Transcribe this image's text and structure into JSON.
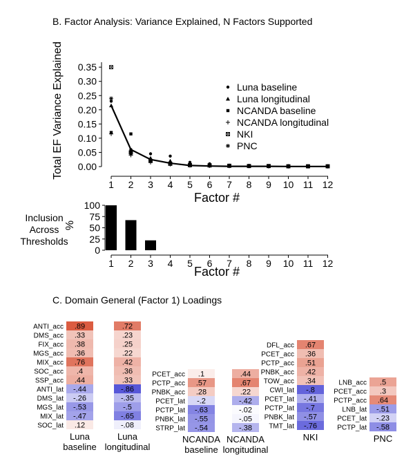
{
  "panel_b_title": "B. Factor Analysis: Variance Explained, N Factors Supported",
  "panel_c_title": "C. Domain General (Factor 1) Loadings",
  "chart_data": [
    {
      "type": "scatter",
      "ylabel": "Total EF Variance Explained",
      "xlabel": "Factor #",
      "x": [
        1,
        2,
        3,
        4,
        5,
        6,
        7,
        8,
        9,
        10,
        11,
        12
      ],
      "y_ticks": [
        "0.00",
        "0.05",
        "0.10",
        "0.15",
        "0.20",
        "0.25",
        "0.30",
        "0.35"
      ],
      "ylim": [
        0,
        0.36
      ],
      "legend_position": "right",
      "series": [
        {
          "name": "Luna baseline",
          "marker": "circle",
          "values": [
            0.23,
            0.06,
            0.045,
            0.037,
            0.015,
            0.01,
            0.004,
            0.003,
            0.003,
            0.002,
            0.001,
            0.001
          ]
        },
        {
          "name": "Luna longitudinal",
          "marker": "triangle",
          "values": [
            0.215,
            0.055,
            0.03,
            0.02,
            0.008,
            0.006,
            0.004,
            0.003,
            0.002,
            0.002,
            0.001,
            0.001
          ]
        },
        {
          "name": "NCANDA baseline",
          "marker": "square",
          "values": [
            0.12,
            0.115,
            0.02,
            0.012,
            0.006,
            0.004,
            0.003,
            0.002,
            0.002,
            0.001,
            0.001,
            0.001
          ]
        },
        {
          "name": "NCANDA longitudinal",
          "marker": "plus",
          "values": [
            0.115,
            0.04,
            0.015,
            0.008,
            0.004,
            0.003,
            0.002,
            0.002,
            0.001,
            0.001,
            0.001,
            0.001
          ]
        },
        {
          "name": "NKI",
          "marker": "boxx",
          "values": [
            0.35,
            0.05,
            0.02,
            0.01,
            0.005,
            0.004,
            0.003,
            0.002,
            0.002,
            0.001,
            0.001,
            0.001
          ]
        },
        {
          "name": "PNC",
          "marker": "star",
          "values": [
            0.24,
            0.045,
            0.022,
            0.01,
            0.005,
            0.003,
            0.002,
            0.002,
            0.001,
            0.001,
            0.001,
            0.001
          ]
        }
      ],
      "mean_line": [
        0.215,
        0.06,
        0.025,
        0.012,
        0.004,
        0.002,
        0.001,
        0.001,
        0.001,
        0.0005,
        0.0005,
        0.0005
      ]
    },
    {
      "type": "bar",
      "ylabel_left": [
        "Inclusion",
        "Across",
        "Thresholds"
      ],
      "ylabel_unit": "%",
      "xlabel": "Factor #",
      "categories": [
        "1",
        "2",
        "3",
        "4",
        "5",
        "6",
        "7",
        "8",
        "9",
        "10",
        "11",
        "12"
      ],
      "values": [
        100,
        67,
        22,
        0,
        0,
        0,
        0,
        0,
        0,
        0,
        0,
        0
      ],
      "y_ticks": [
        "0",
        "25",
        "50",
        "75",
        "100"
      ],
      "ylim": [
        0,
        100
      ]
    },
    {
      "type": "heatmap",
      "columns": [
        {
          "label": [
            "Luna",
            "baseline"
          ],
          "rows": [
            {
              "name": "ANTI_acc",
              "value": 0.89,
              "text": ".89"
            },
            {
              "name": "DMS_acc",
              "value": 0.33,
              "text": ".33"
            },
            {
              "name": "FIX_acc",
              "value": 0.38,
              "text": ".38"
            },
            {
              "name": "MGS_acc",
              "value": 0.36,
              "text": ".36"
            },
            {
              "name": "MIX_acc",
              "value": 0.76,
              "text": ".76"
            },
            {
              "name": "SOC_acc",
              "value": 0.4,
              "text": ".4"
            },
            {
              "name": "SSP_acc",
              "value": 0.44,
              "text": ".44"
            },
            {
              "name": "ANTI_lat",
              "value": -0.44,
              "text": "-.44"
            },
            {
              "name": "DMS_lat",
              "value": -0.26,
              "text": "-.26"
            },
            {
              "name": "MGS_lat",
              "value": -0.53,
              "text": "-.53"
            },
            {
              "name": "MIX_lat",
              "value": -0.47,
              "text": "-.47"
            },
            {
              "name": "SOC_lat",
              "value": 0.12,
              "text": ".12"
            }
          ]
        },
        {
          "label": [
            "Luna",
            "longitudinal"
          ],
          "rows": [
            {
              "name": "",
              "value": 0.72,
              "text": ".72"
            },
            {
              "name": "",
              "value": 0.23,
              "text": ".23"
            },
            {
              "name": "",
              "value": 0.25,
              "text": ".25"
            },
            {
              "name": "",
              "value": 0.22,
              "text": ".22"
            },
            {
              "name": "",
              "value": 0.42,
              "text": ".42"
            },
            {
              "name": "",
              "value": 0.36,
              "text": ".36"
            },
            {
              "name": "",
              "value": 0.33,
              "text": ".33"
            },
            {
              "name": "",
              "value": -0.86,
              "text": "-.86"
            },
            {
              "name": "",
              "value": -0.35,
              "text": "-.35"
            },
            {
              "name": "",
              "value": -0.5,
              "text": "-.5"
            },
            {
              "name": "",
              "value": -0.65,
              "text": "-.65"
            },
            {
              "name": "",
              "value": -0.08,
              "text": "-.08"
            }
          ]
        },
        {
          "label": [
            "NCANDA",
            "baseline"
          ],
          "rows": [
            {
              "name": "PCET_acc",
              "value": 0.1,
              "text": ".1"
            },
            {
              "name": "PCTP_acc",
              "value": 0.57,
              "text": ".57"
            },
            {
              "name": "PNBK_acc",
              "value": 0.28,
              "text": ".28"
            },
            {
              "name": "PCET_lat",
              "value": -0.2,
              "text": "-.2"
            },
            {
              "name": "PCTP_lat",
              "value": -0.63,
              "text": "-.63"
            },
            {
              "name": "PNBK_lat",
              "value": -0.55,
              "text": "-.55"
            },
            {
              "name": "STRP_lat",
              "value": -0.54,
              "text": "-.54"
            }
          ]
        },
        {
          "label": [
            "NCANDA",
            "longitudinal"
          ],
          "rows": [
            {
              "name": "",
              "value": 0.44,
              "text": ".44"
            },
            {
              "name": "",
              "value": 0.67,
              "text": ".67"
            },
            {
              "name": "",
              "value": 0.22,
              "text": ".22"
            },
            {
              "name": "",
              "value": -0.42,
              "text": "-.42"
            },
            {
              "name": "",
              "value": -0.02,
              "text": "-.02"
            },
            {
              "name": "",
              "value": -0.05,
              "text": "-.05"
            },
            {
              "name": "",
              "value": -0.38,
              "text": "-.38"
            }
          ]
        },
        {
          "label": [
            "NKI"
          ],
          "rows": [
            {
              "name": "DFL_acc",
              "value": 0.67,
              "text": ".67"
            },
            {
              "name": "PCET_acc",
              "value": 0.36,
              "text": ".36"
            },
            {
              "name": "PCTP_acc",
              "value": 0.51,
              "text": ".51"
            },
            {
              "name": "PNBK_acc",
              "value": 0.42,
              "text": ".42"
            },
            {
              "name": "TOW_acc",
              "value": 0.34,
              "text": ".34"
            },
            {
              "name": "CWI_lat",
              "value": -0.8,
              "text": "-.8"
            },
            {
              "name": "PCET_lat",
              "value": -0.41,
              "text": "-.41"
            },
            {
              "name": "PCTP_lat",
              "value": -0.7,
              "text": "-.7"
            },
            {
              "name": "PNBK_lat",
              "value": -0.57,
              "text": "-.57"
            },
            {
              "name": "TMT_lat",
              "value": -0.76,
              "text": "-.76"
            }
          ]
        },
        {
          "label": [
            "PNC"
          ],
          "rows": [
            {
              "name": "LNB_acc",
              "value": 0.5,
              "text": ".5"
            },
            {
              "name": "PCET_acc",
              "value": 0.3,
              "text": ".3"
            },
            {
              "name": "PCTP_acc",
              "value": 0.64,
              "text": ".64"
            },
            {
              "name": "LNB_lat",
              "value": -0.51,
              "text": "-.51"
            },
            {
              "name": "PCET_lat",
              "value": -0.23,
              "text": "-.23"
            },
            {
              "name": "PCTP_lat",
              "value": -0.58,
              "text": "-.58"
            }
          ]
        }
      ]
    }
  ]
}
